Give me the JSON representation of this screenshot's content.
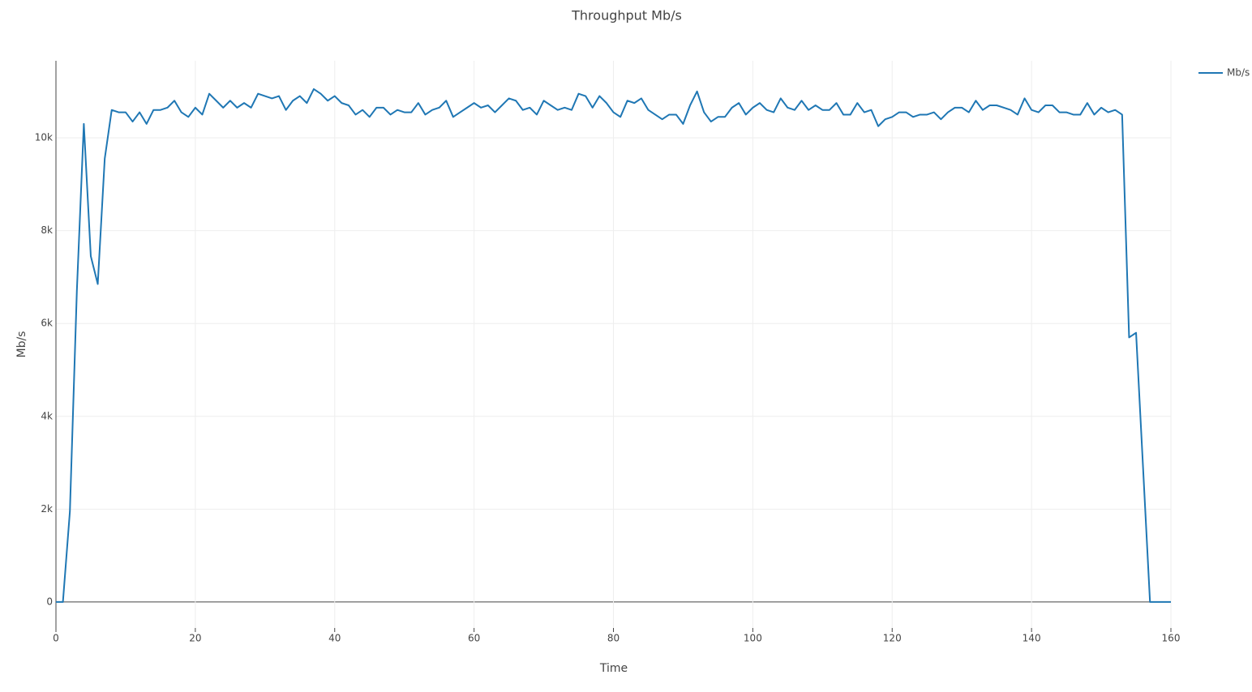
{
  "chart_data": {
    "type": "line",
    "title": "Throughput Mb/s",
    "x_label": "Time",
    "y_label": "Mb/s",
    "x": [
      0,
      1,
      2,
      3,
      4,
      5,
      6,
      7,
      8,
      9,
      10,
      11,
      12,
      13,
      14,
      15,
      16,
      17,
      18,
      19,
      20,
      21,
      22,
      23,
      24,
      25,
      26,
      27,
      28,
      29,
      30,
      31,
      32,
      33,
      34,
      35,
      36,
      37,
      38,
      39,
      40,
      41,
      42,
      43,
      44,
      45,
      46,
      47,
      48,
      49,
      50,
      51,
      52,
      53,
      54,
      55,
      56,
      57,
      58,
      59,
      60,
      61,
      62,
      63,
      64,
      65,
      66,
      67,
      68,
      69,
      70,
      71,
      72,
      73,
      74,
      75,
      76,
      77,
      78,
      79,
      80,
      81,
      82,
      83,
      84,
      85,
      86,
      87,
      88,
      89,
      90,
      91,
      92,
      93,
      94,
      95,
      96,
      97,
      98,
      99,
      100,
      101,
      102,
      103,
      104,
      105,
      106,
      107,
      108,
      109,
      110,
      111,
      112,
      113,
      114,
      115,
      116,
      117,
      118,
      119,
      120,
      121,
      122,
      123,
      124,
      125,
      126,
      127,
      128,
      129,
      130,
      131,
      132,
      133,
      134,
      135,
      136,
      137,
      138,
      139,
      140,
      141,
      142,
      143,
      144,
      145,
      146,
      147,
      148,
      149,
      150,
      151,
      152,
      153,
      154,
      155,
      156,
      157,
      158,
      159,
      160
    ],
    "series": [
      {
        "name": "Mb/s",
        "color": "#1f77b4",
        "values": [
          0,
          0,
          1950,
          6700,
          10300,
          7450,
          6850,
          9550,
          10600,
          10550,
          10550,
          10350,
          10550,
          10300,
          10600,
          10600,
          10650,
          10800,
          10550,
          10450,
          10650,
          10500,
          10950,
          10800,
          10650,
          10800,
          10650,
          10750,
          10650,
          10950,
          10900,
          10850,
          10900,
          10600,
          10800,
          10900,
          10750,
          11050,
          10950,
          10800,
          10900,
          10750,
          10700,
          10500,
          10600,
          10450,
          10650,
          10650,
          10500,
          10600,
          10550,
          10550,
          10750,
          10500,
          10600,
          10650,
          10800,
          10450,
          10550,
          10650,
          10750,
          10650,
          10700,
          10550,
          10700,
          10850,
          10800,
          10600,
          10650,
          10500,
          10800,
          10700,
          10600,
          10650,
          10600,
          10950,
          10900,
          10650,
          10900,
          10750,
          10550,
          10450,
          10800,
          10750,
          10850,
          10600,
          10500,
          10400,
          10500,
          10500,
          10300,
          10700,
          11000,
          10550,
          10350,
          10450,
          10450,
          10650,
          10750,
          10500,
          10650,
          10750,
          10600,
          10550,
          10850,
          10650,
          10600,
          10800,
          10600,
          10700,
          10600,
          10600,
          10750,
          10500,
          10500,
          10750,
          10550,
          10600,
          10250,
          10400,
          10450,
          10550,
          10550,
          10450,
          10500,
          10500,
          10550,
          10400,
          10550,
          10650,
          10650,
          10550,
          10800,
          10600,
          10700,
          10700,
          10650,
          10600,
          10500,
          10850,
          10600,
          10550,
          10700,
          10700,
          10550,
          10550,
          10500,
          10500,
          10750,
          10500,
          10650,
          10550,
          10600,
          10500,
          5700,
          5800,
          2900,
          0,
          0,
          0,
          0
        ]
      }
    ],
    "xlim": [
      0,
      160
    ],
    "xticks": [
      0,
      20,
      40,
      60,
      80,
      100,
      120,
      140,
      160
    ],
    "ylim": [
      -560,
      11660
    ],
    "yticks": [
      0,
      {
        "value": 2000,
        "label": "2k"
      },
      {
        "value": 4000,
        "label": "4k"
      },
      {
        "value": 6000,
        "label": "6k"
      },
      {
        "value": 8000,
        "label": "8k"
      },
      {
        "value": 10000,
        "label": "10k"
      }
    ],
    "grid": true,
    "legend": "top-right"
  }
}
